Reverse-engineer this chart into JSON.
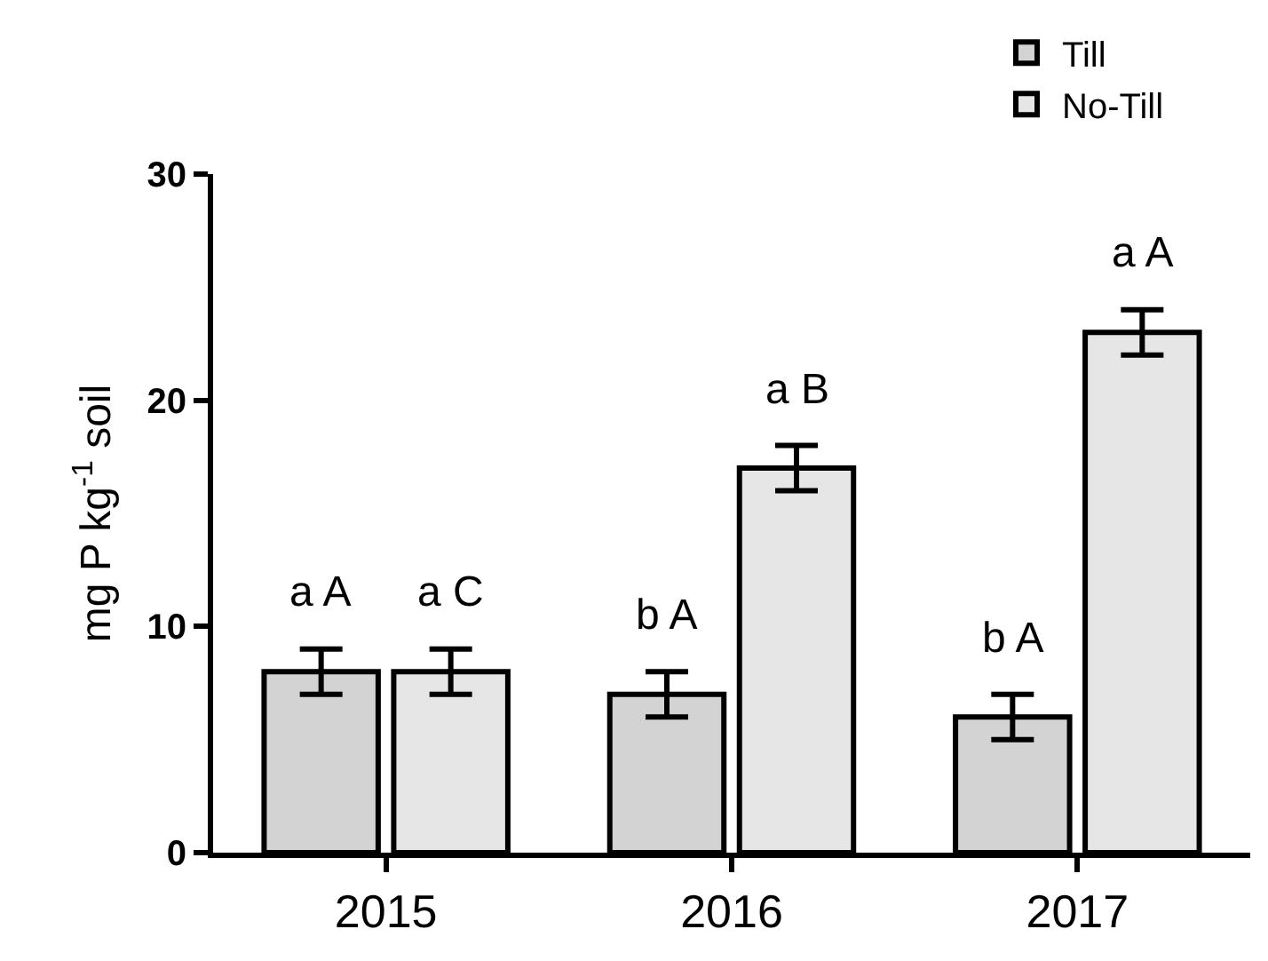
{
  "chart_data": {
    "type": "bar",
    "categories": [
      "2015",
      "2016",
      "2017"
    ],
    "ylabel": "mg P kg$^{-1}$ soil",
    "series": [
      {
        "name": "Till",
        "color": "#d3d3d3",
        "values": [
          8,
          7,
          6
        ],
        "errors": [
          1,
          1,
          1
        ],
        "value_labels": [
          "a A",
          "b A",
          "b A"
        ]
      },
      {
        "name": "No-Till",
        "color": "#e6e6e6",
        "values": [
          8,
          17,
          23
        ],
        "errors": [
          1,
          1,
          1
        ],
        "value_labels": [
          "a C",
          "a B",
          "a A"
        ]
      }
    ],
    "ylim": [
      0,
      30
    ],
    "yticks": [
      0,
      10,
      20,
      30
    ],
    "grid": false,
    "legend": "top right"
  }
}
